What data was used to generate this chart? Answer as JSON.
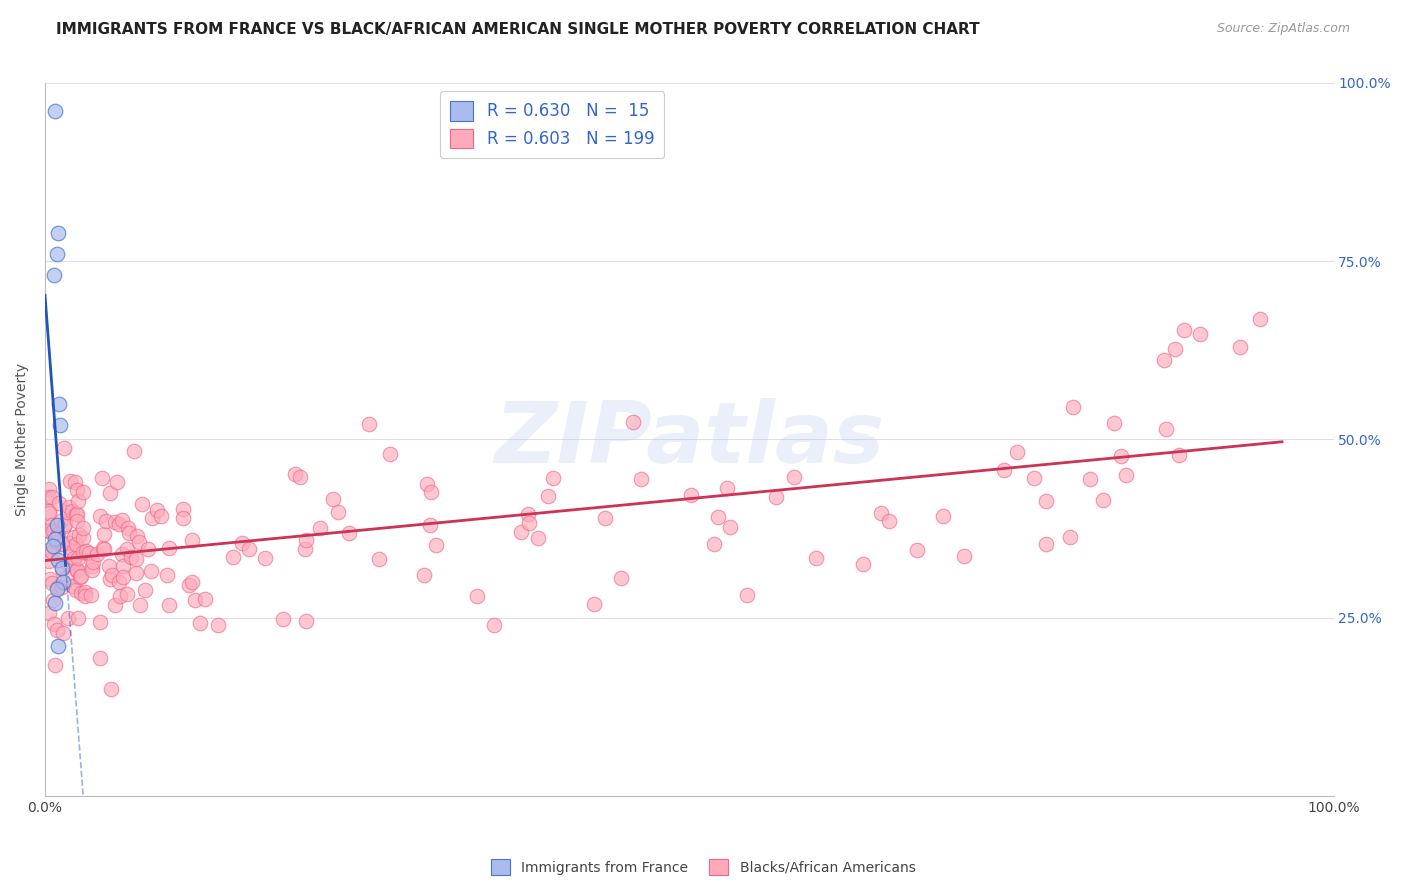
{
  "title": "IMMIGRANTS FROM FRANCE VS BLACK/AFRICAN AMERICAN SINGLE MOTHER POVERTY CORRELATION CHART",
  "source": "Source: ZipAtlas.com",
  "ylabel": "Single Mother Poverty",
  "blue_R": 0.63,
  "blue_N": 15,
  "pink_R": 0.603,
  "pink_N": 199,
  "blue_fill": "#AABBEE",
  "blue_edge": "#4477CC",
  "pink_fill": "#FFAABB",
  "pink_edge": "#EE6688",
  "blue_line_color": "#2255BB",
  "pink_line_color": "#CC3355",
  "watermark_text": "ZIPatlas",
  "watermark_color": "#BBCCEE",
  "background_color": "#FFFFFF",
  "grid_color": "#DDDDEE",
  "title_fontsize": 11,
  "legend_fontsize": 12,
  "right_tick_color": "#3366CC"
}
